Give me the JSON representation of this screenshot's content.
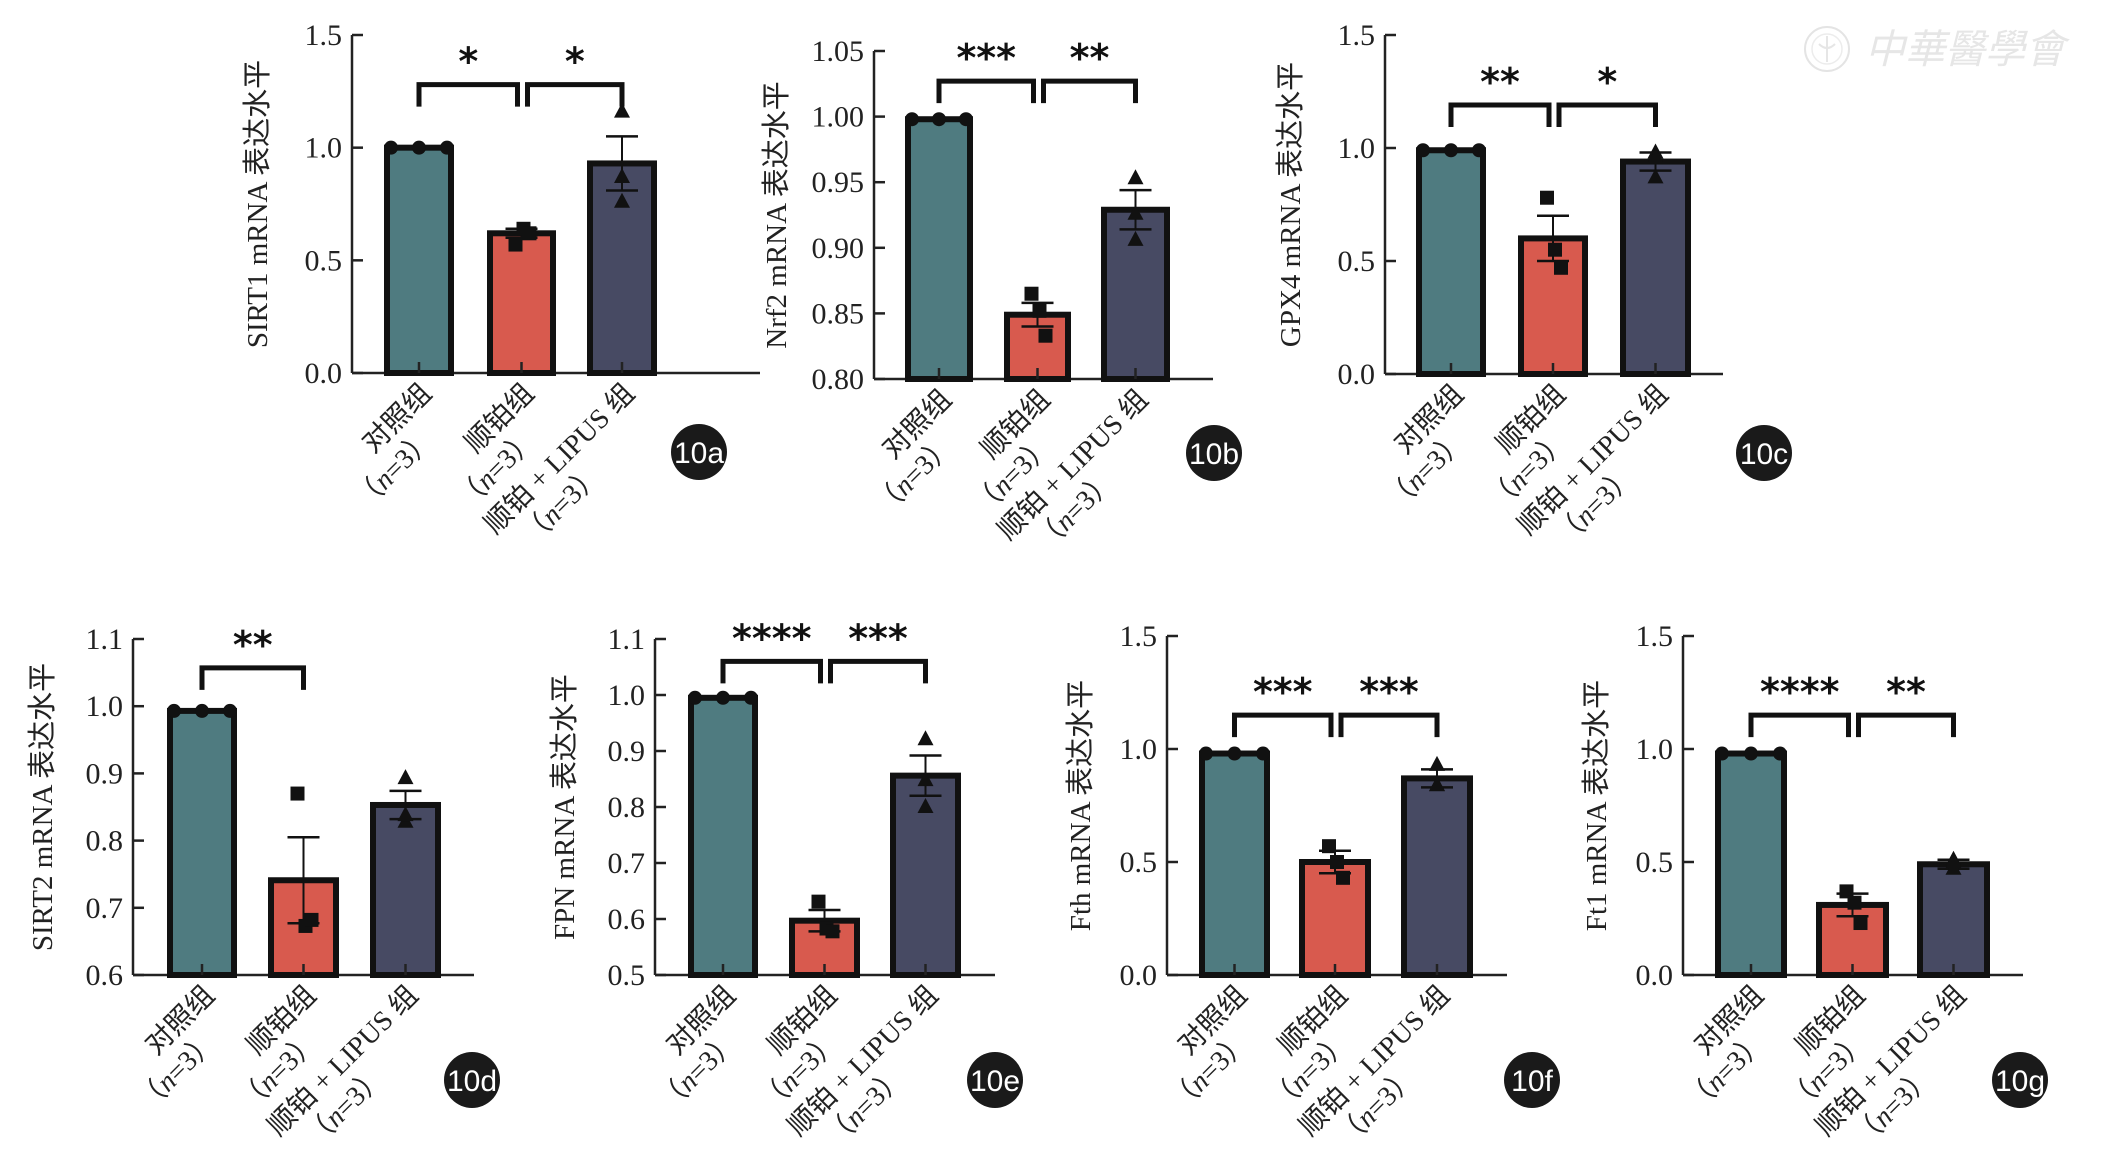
{
  "watermark": {
    "text": "中華醫學會",
    "icon": "society-seal-icon"
  },
  "colors": {
    "control": "#4f7b80",
    "cisplatin": "#d85a4e",
    "cisplatin_lipus": "#474a63",
    "outline": "#111111"
  },
  "group_labels": [
    {
      "line1": "对照组",
      "n_open": "（",
      "n_var": "n",
      "n_rest": "=3",
      "n_close": "）"
    },
    {
      "line1": "顺铂组",
      "n_open": "（",
      "n_var": "n",
      "n_rest": "=3",
      "n_close": "）"
    },
    {
      "line1": "顺铂 + LIPUS 组",
      "n_open": "（",
      "n_var": "n",
      "n_rest": "=3",
      "n_close": "）"
    }
  ],
  "chart_data": [
    {
      "id": "10a",
      "type": "bar",
      "title": "",
      "badge": "10a",
      "ylabel": "SIRT1 mRNA 表达水平",
      "xlabel": "",
      "categories": [
        "对照组（n=3）",
        "顺铂组（n=3）",
        "顺铂 + LIPUS 组（n=3）"
      ],
      "ylim": [
        0.0,
        1.5
      ],
      "yticks": [
        "0.0",
        "0.5",
        "1.0",
        "1.5"
      ],
      "ytick_values": [
        0.0,
        0.5,
        1.0,
        1.5
      ],
      "values": [
        1.0,
        0.62,
        0.93
      ],
      "sem": [
        0.0,
        0.02,
        0.12
      ],
      "points": [
        [
          1.0,
          1.0,
          1.0
        ],
        [
          0.57,
          0.64,
          0.62
        ],
        [
          1.16,
          0.87,
          0.76
        ]
      ],
      "markers": [
        "circle",
        "square",
        "triangle"
      ],
      "significance": [
        {
          "from": 0,
          "to": 1,
          "label": "*",
          "level": 1.28
        },
        {
          "from": 1,
          "to": 2,
          "label": "*",
          "level": 1.28
        }
      ]
    },
    {
      "id": "10b",
      "type": "bar",
      "title": "",
      "badge": "10b",
      "ylabel": "Nrf2 mRNA 表达水平",
      "xlabel": "",
      "categories": [
        "对照组（n=3）",
        "顺铂组（n=3）",
        "顺铂 + LIPUS 组（n=3）"
      ],
      "ylim": [
        0.8,
        1.05
      ],
      "yticks": [
        "0.80",
        "0.85",
        "0.90",
        "0.95",
        "1.00",
        "1.05"
      ],
      "ytick_values": [
        0.8,
        0.85,
        0.9,
        0.95,
        1.0,
        1.05
      ],
      "values": [
        0.998,
        0.849,
        0.929
      ],
      "sem": [
        0.0,
        0.009,
        0.015
      ],
      "points": [
        [
          0.998,
          0.998,
          0.998
        ],
        [
          0.865,
          0.852,
          0.833
        ],
        [
          0.953,
          0.926,
          0.906
        ]
      ],
      "markers": [
        "circle",
        "square",
        "triangle"
      ],
      "significance": [
        {
          "from": 0,
          "to": 1,
          "label": "***",
          "level": 1.027
        },
        {
          "from": 1,
          "to": 2,
          "label": "**",
          "level": 1.027
        }
      ]
    },
    {
      "id": "10c",
      "type": "bar",
      "title": "",
      "badge": "10c",
      "ylabel": "GPX4 mRNA 表达水平",
      "xlabel": "",
      "categories": [
        "对照组（n=3）",
        "顺铂组（n=3）",
        "顺铂 + LIPUS 组（n=3）"
      ],
      "ylim": [
        0.0,
        1.5
      ],
      "yticks": [
        "0.0",
        "0.5",
        "1.0",
        "1.5"
      ],
      "ytick_values": [
        0.0,
        0.5,
        1.0,
        1.5
      ],
      "values": [
        0.99,
        0.6,
        0.94
      ],
      "sem": [
        0.0,
        0.1,
        0.04
      ],
      "points": [
        [
          0.99,
          0.99,
          0.99
        ],
        [
          0.78,
          0.55,
          0.47
        ],
        [
          0.98,
          0.96,
          0.87
        ]
      ],
      "markers": [
        "circle",
        "square",
        "triangle"
      ],
      "significance": [
        {
          "from": 0,
          "to": 1,
          "label": "**",
          "level": 1.19
        },
        {
          "from": 1,
          "to": 2,
          "label": "*",
          "level": 1.19
        }
      ]
    },
    {
      "id": "10d",
      "type": "bar",
      "title": "",
      "badge": "10d",
      "ylabel": "SIRT2 mRNA 表达水平",
      "xlabel": "",
      "categories": [
        "对照组（n=3）",
        "顺铂组（n=3）",
        "顺铂 + LIPUS 组（n=3）"
      ],
      "ylim": [
        0.6,
        1.1
      ],
      "yticks": [
        "0.6",
        "0.7",
        "0.8",
        "0.9",
        "1.0",
        "1.1"
      ],
      "ytick_values": [
        0.6,
        0.7,
        0.8,
        0.9,
        1.0,
        1.1
      ],
      "values": [
        0.993,
        0.741,
        0.853
      ],
      "sem": [
        0.0,
        0.064,
        0.021
      ],
      "points": [
        [
          0.993,
          0.993,
          0.993
        ],
        [
          0.87,
          0.673,
          0.682
        ],
        [
          0.893,
          0.828,
          0.838
        ]
      ],
      "markers": [
        "circle",
        "square",
        "triangle"
      ],
      "significance": [
        {
          "from": 0,
          "to": 1,
          "label": "**",
          "level": 1.057
        }
      ]
    },
    {
      "id": "10e",
      "type": "bar",
      "title": "",
      "badge": "10e",
      "ylabel": "FPN mRNA 表达水平",
      "xlabel": "",
      "categories": [
        "对照组（n=3）",
        "顺铂组（n=3）",
        "顺铂 + LIPUS 组（n=3）"
      ],
      "ylim": [
        0.5,
        1.1
      ],
      "yticks": [
        "0.5",
        "0.6",
        "0.7",
        "0.8",
        "0.9",
        "1.0",
        "1.1"
      ],
      "ytick_values": [
        0.5,
        0.6,
        0.7,
        0.8,
        0.9,
        1.0,
        1.1
      ],
      "values": [
        0.995,
        0.597,
        0.856
      ],
      "sem": [
        0.0,
        0.019,
        0.036
      ],
      "points": [
        [
          0.995,
          0.995,
          0.995
        ],
        [
          0.631,
          0.583,
          0.578
        ],
        [
          0.921,
          0.848,
          0.8
        ]
      ],
      "markers": [
        "circle",
        "square",
        "triangle"
      ],
      "significance": [
        {
          "from": 0,
          "to": 1,
          "label": "****",
          "level": 1.06
        },
        {
          "from": 1,
          "to": 2,
          "label": "***",
          "level": 1.06
        }
      ]
    },
    {
      "id": "10f",
      "type": "bar",
      "title": "",
      "badge": "10f",
      "ylabel": "Fth mRNA 表达水平",
      "xlabel": "",
      "categories": [
        "对照组（n=3）",
        "顺铂组（n=3）",
        "顺铂 + LIPUS 组（n=3）"
      ],
      "ylim": [
        0.0,
        1.5
      ],
      "yticks": [
        "0.0",
        "0.5",
        "1.0",
        "1.5"
      ],
      "ytick_values": [
        0.0,
        0.5,
        1.0,
        1.5
      ],
      "values": [
        0.98,
        0.5,
        0.87
      ],
      "sem": [
        0.0,
        0.05,
        0.04
      ],
      "points": [
        [
          0.98,
          0.98,
          0.98
        ],
        [
          0.57,
          0.5,
          0.43
        ],
        [
          0.93,
          0.84,
          0.84
        ]
      ],
      "markers": [
        "circle",
        "square",
        "triangle"
      ],
      "significance": [
        {
          "from": 0,
          "to": 1,
          "label": "***",
          "level": 1.15
        },
        {
          "from": 1,
          "to": 2,
          "label": "***",
          "level": 1.15
        }
      ]
    },
    {
      "id": "10g",
      "type": "bar",
      "title": "",
      "badge": "10g",
      "ylabel": "Ft1 mRNA 表达水平",
      "xlabel": "",
      "categories": [
        "对照组（n=3）",
        "顺铂组（n=3）",
        "顺铂 + LIPUS 组（n=3）"
      ],
      "ylim": [
        0.0,
        1.5
      ],
      "yticks": [
        "0.0",
        "0.5",
        "1.0",
        "1.5"
      ],
      "ytick_values": [
        0.0,
        0.5,
        1.0,
        1.5
      ],
      "values": [
        0.98,
        0.31,
        0.49
      ],
      "sem": [
        0.0,
        0.05,
        0.02
      ],
      "points": [
        [
          0.98,
          0.98,
          0.98
        ],
        [
          0.37,
          0.32,
          0.23
        ],
        [
          0.47,
          0.51,
          0.5
        ]
      ],
      "markers": [
        "circle",
        "square",
        "triangle"
      ],
      "significance": [
        {
          "from": 0,
          "to": 1,
          "label": "****",
          "level": 1.15
        },
        {
          "from": 1,
          "to": 2,
          "label": "**",
          "level": 1.15
        }
      ]
    }
  ]
}
